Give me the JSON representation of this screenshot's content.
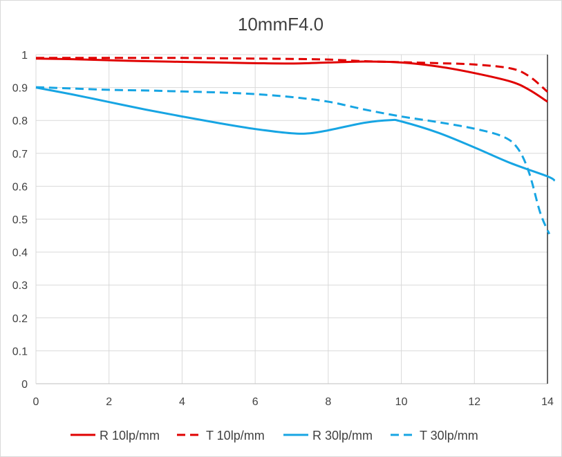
{
  "chart_data": {
    "type": "line",
    "title": "10mmF4.0",
    "xlabel": "",
    "ylabel": "",
    "xlim": [
      0,
      14
    ],
    "ylim": [
      0,
      1
    ],
    "x_ticks": [
      "0",
      "2",
      "4",
      "6",
      "8",
      "10",
      "12",
      "14"
    ],
    "y_ticks": [
      "0",
      "0.1",
      "0.2",
      "0.3",
      "0.4",
      "0.5",
      "0.6",
      "0.7",
      "0.8",
      "0.9",
      "1"
    ],
    "grid": true,
    "legend_position": "bottom",
    "series": [
      {
        "name": "R 10lp/mm",
        "color": "#e00000",
        "dash": "solid",
        "points": [
          [
            0,
            0.988
          ],
          [
            1,
            0.986
          ],
          [
            2,
            0.983
          ],
          [
            3,
            0.98
          ],
          [
            4,
            0.978
          ],
          [
            5,
            0.976
          ],
          [
            6,
            0.974
          ],
          [
            7,
            0.973
          ],
          [
            8,
            0.976
          ],
          [
            9,
            0.979
          ],
          [
            10,
            0.976
          ],
          [
            11,
            0.964
          ],
          [
            12,
            0.944
          ],
          [
            13,
            0.918
          ],
          [
            13.5,
            0.893
          ],
          [
            14,
            0.857
          ]
        ]
      },
      {
        "name": "T 10lp/mm",
        "color": "#e00000",
        "dash": "dashed",
        "points": [
          [
            0,
            0.99
          ],
          [
            1,
            0.99
          ],
          [
            2,
            0.99
          ],
          [
            3,
            0.99
          ],
          [
            4,
            0.99
          ],
          [
            5,
            0.989
          ],
          [
            6,
            0.988
          ],
          [
            7,
            0.987
          ],
          [
            8,
            0.985
          ],
          [
            9,
            0.98
          ],
          [
            10,
            0.977
          ],
          [
            11,
            0.974
          ],
          [
            12,
            0.97
          ],
          [
            13,
            0.958
          ],
          [
            13.5,
            0.934
          ],
          [
            14,
            0.887
          ]
        ]
      },
      {
        "name": "R 30lp/mm",
        "color": "#17a5e3",
        "dash": "solid",
        "points": [
          [
            0,
            0.9
          ],
          [
            1,
            0.879
          ],
          [
            2,
            0.856
          ],
          [
            3,
            0.833
          ],
          [
            4,
            0.812
          ],
          [
            5,
            0.792
          ],
          [
            6,
            0.774
          ],
          [
            7,
            0.761
          ],
          [
            7.5,
            0.761
          ],
          [
            8,
            0.77
          ],
          [
            9,
            0.793
          ],
          [
            9.7,
            0.801
          ],
          [
            10,
            0.797
          ],
          [
            11,
            0.763
          ],
          [
            12,
            0.718
          ],
          [
            13,
            0.67
          ],
          [
            14,
            0.63
          ],
          [
            14.2,
            0.617
          ]
        ]
      },
      {
        "name": "T 30lp/mm",
        "color": "#17a5e3",
        "dash": "dashed",
        "points": [
          [
            0,
            0.901
          ],
          [
            1,
            0.897
          ],
          [
            2,
            0.893
          ],
          [
            3,
            0.891
          ],
          [
            4,
            0.888
          ],
          [
            5,
            0.885
          ],
          [
            6,
            0.88
          ],
          [
            7,
            0.871
          ],
          [
            8,
            0.857
          ],
          [
            9,
            0.833
          ],
          [
            10,
            0.812
          ],
          [
            11,
            0.795
          ],
          [
            12,
            0.775
          ],
          [
            12.8,
            0.75
          ],
          [
            13.2,
            0.713
          ],
          [
            13.5,
            0.64
          ],
          [
            13.8,
            0.52
          ],
          [
            14.05,
            0.455
          ]
        ]
      }
    ]
  }
}
